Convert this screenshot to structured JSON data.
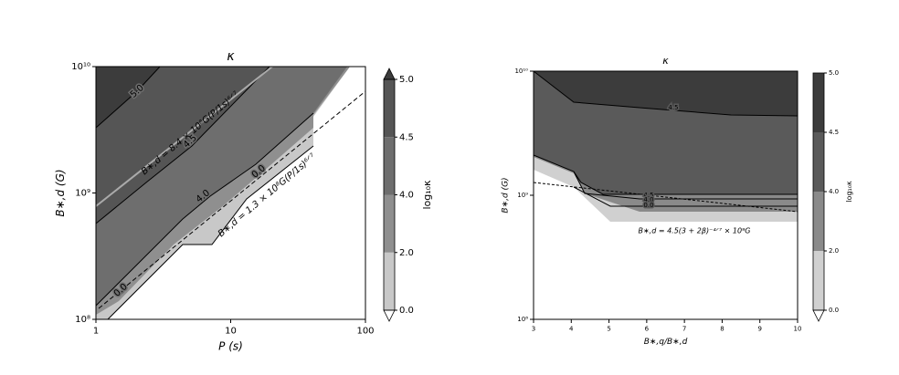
{
  "chart_data": [
    {
      "type": "contour",
      "title": "κ",
      "x_label": "P (s)",
      "y_label": "B∗,d (G)",
      "xscale": "log",
      "yscale": "log",
      "xlim": [
        1,
        100
      ],
      "ylim": [
        100000000,
        10000000000
      ],
      "xticks": [
        1,
        10,
        100
      ],
      "yticks": [
        {
          "value": 100000000,
          "label": "10⁸"
        },
        {
          "value": 1000000000,
          "label": "10⁹"
        },
        {
          "value": 10000000000,
          "label": "10¹⁰"
        }
      ],
      "colorbar": {
        "label": "log₁₀κ",
        "levels": [
          {
            "value": 0,
            "label": "0.0"
          },
          {
            "value": 2,
            "label": "2.0"
          },
          {
            "value": 4,
            "label": "4.0"
          },
          {
            "value": 4.5,
            "label": "4.5"
          },
          {
            "value": 5,
            "label": "5.0"
          }
        ],
        "colors": [
          "#c8c8c8",
          "#8f8f8f",
          "#6e6e6e",
          "#555555"
        ],
        "extend": "both",
        "extend_color": "#3c3c3c"
      },
      "contour_labels": [
        "5.0",
        "4.5",
        "4.0",
        "0.0",
        "0.0"
      ],
      "annotations": [
        "B∗,d = 8.4 × 10⁸G(P/1s)⁶ᐟ⁷",
        "B∗,d = 1.3 × 10⁸G(P/1s)⁶ᐟ⁷"
      ]
    },
    {
      "type": "contour",
      "title": "κ",
      "x_label": "B∗,q/B∗,d",
      "y_label": "B∗,d (G)",
      "xscale": "linear",
      "yscale": "log",
      "xlim": [
        3,
        10
      ],
      "ylim": [
        100000000,
        10000000000
      ],
      "xticks": [
        3,
        4,
        5,
        6,
        7,
        8,
        9,
        10
      ],
      "yticks": [
        {
          "value": 100000000,
          "label": "10⁸"
        },
        {
          "value": 1000000000,
          "label": "10⁹"
        },
        {
          "value": 10000000000,
          "label": "10¹⁰"
        }
      ],
      "colorbar": {
        "label": "log₁₀κ",
        "levels": [
          {
            "value": 0,
            "label": "0.0"
          },
          {
            "value": 2,
            "label": "2.0"
          },
          {
            "value": 4,
            "label": "4.0"
          },
          {
            "value": 4.5,
            "label": "4.5"
          },
          {
            "value": 5,
            "label": "5.0"
          }
        ],
        "colors": [
          "#d0d0d0",
          "#8a8a8a",
          "#5a5a5a",
          "#3c3c3c"
        ],
        "extend": "min",
        "extend_color": "#3c3c3c"
      },
      "contour_labels": [
        "4.5",
        "4.5",
        "4.0",
        "0.0"
      ],
      "annotations": [
        "B∗,d = 4.5(3 + 2β)⁻⁴ᐟ⁷ × 10⁹G"
      ]
    }
  ]
}
